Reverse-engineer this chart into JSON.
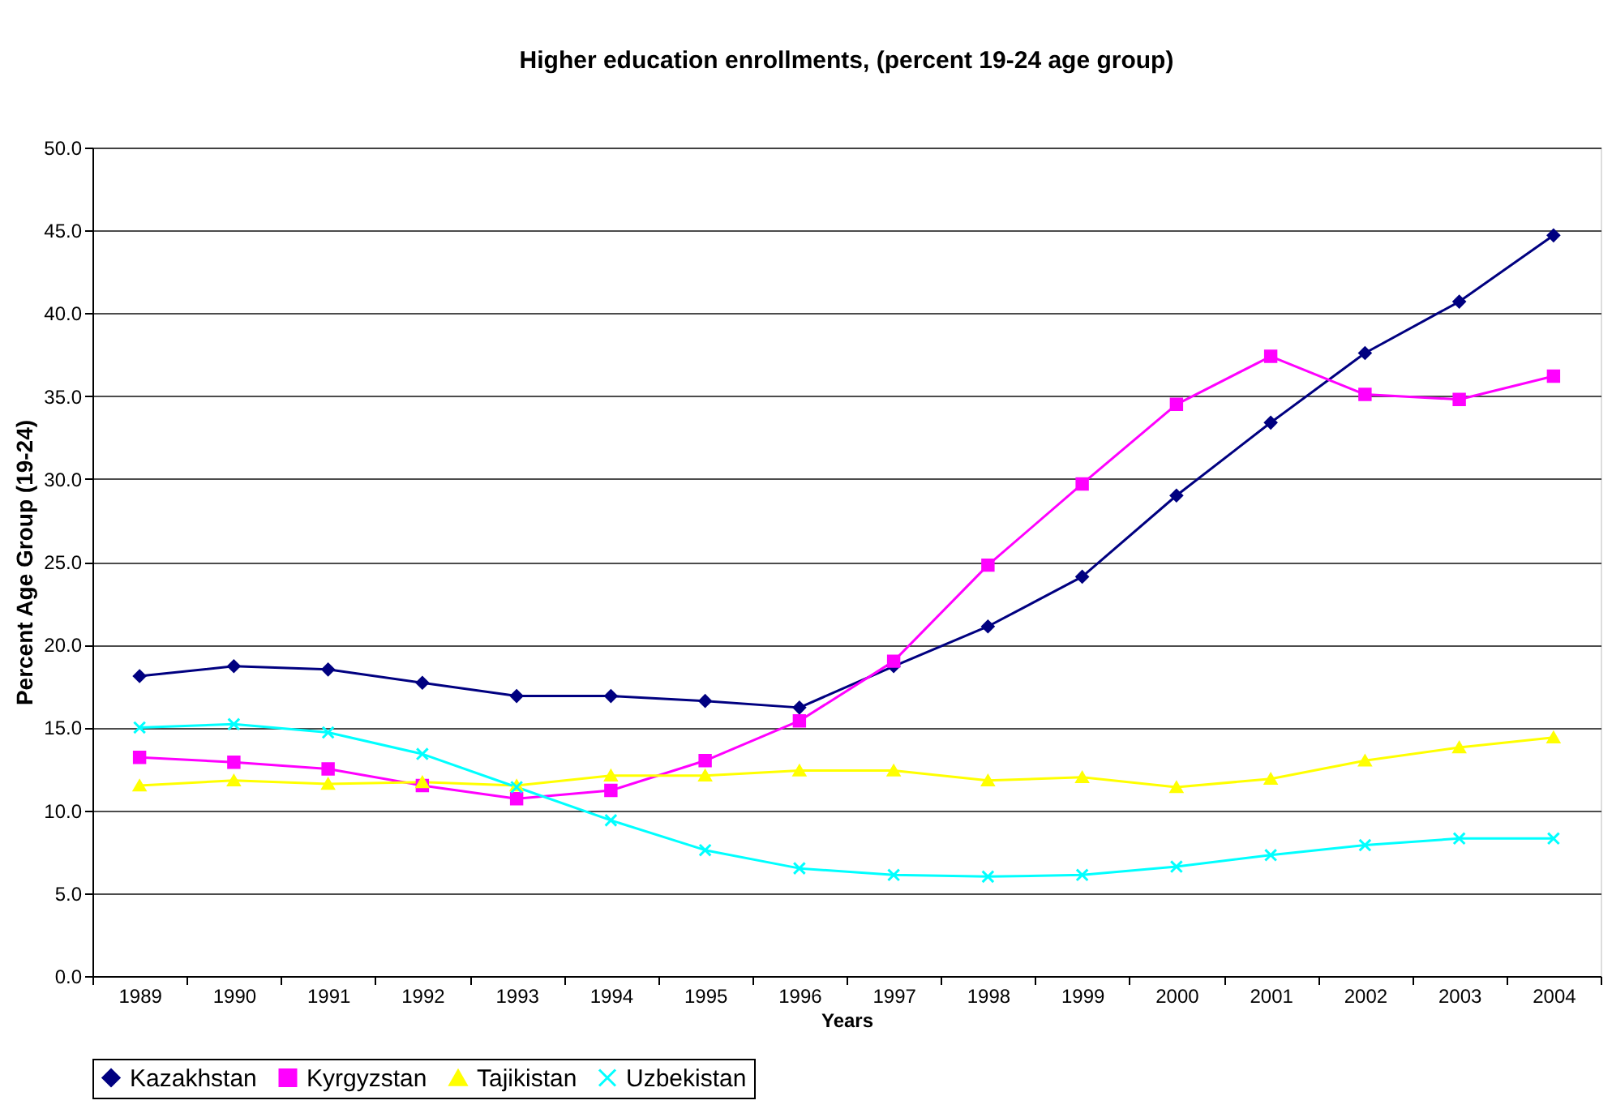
{
  "chart_data": {
    "type": "line",
    "title": "Higher education enrollments, (percent 19-24 age group)",
    "xlabel": "Years",
    "ylabel": "Percent Age Group (19-24)",
    "categories": [
      "1989",
      "1990",
      "1991",
      "1992",
      "1993",
      "1994",
      "1995",
      "1996",
      "1997",
      "1998",
      "1999",
      "2000",
      "2001",
      "2002",
      "2003",
      "2004"
    ],
    "series": [
      {
        "name": "Kazakhstan",
        "color": "#000080",
        "marker": "diamond",
        "values": [
          18.1,
          18.7,
          18.5,
          17.7,
          16.9,
          16.9,
          16.6,
          16.2,
          18.7,
          21.1,
          24.1,
          29.0,
          33.4,
          37.6,
          40.7,
          44.7
        ]
      },
      {
        "name": "Kyrgyzstan",
        "color": "#ff00ff",
        "marker": "square",
        "values": [
          13.2,
          12.9,
          12.5,
          11.5,
          10.7,
          11.2,
          13.0,
          15.4,
          19.0,
          24.8,
          29.7,
          34.5,
          37.4,
          35.1,
          34.8,
          36.2
        ]
      },
      {
        "name": "Tajikistan",
        "color": "#ffff00",
        "marker": "triangle",
        "values": [
          11.5,
          11.8,
          11.6,
          11.7,
          11.5,
          12.1,
          12.1,
          12.4,
          12.4,
          11.8,
          12.0,
          11.4,
          11.9,
          13.0,
          13.8,
          14.4
        ]
      },
      {
        "name": "Uzbekistan",
        "color": "#00ffff",
        "marker": "cross",
        "values": [
          15.0,
          15.2,
          14.7,
          13.4,
          11.4,
          9.4,
          7.6,
          6.5,
          6.1,
          6.0,
          6.1,
          6.6,
          7.3,
          7.9,
          8.3,
          8.3
        ]
      }
    ],
    "ylim": [
      0,
      50
    ],
    "yticks": [
      {
        "value": 0,
        "label": "0.0"
      },
      {
        "value": 5,
        "label": "5.0"
      },
      {
        "value": 10,
        "label": "10.0"
      },
      {
        "value": 15,
        "label": "15.0"
      },
      {
        "value": 20,
        "label": "20.0"
      },
      {
        "value": 25,
        "label": "25.0"
      },
      {
        "value": 30,
        "label": "30.0"
      },
      {
        "value": 35,
        "label": "35.0"
      },
      {
        "value": 40,
        "label": "40.0"
      },
      {
        "value": 45,
        "label": "45.0"
      },
      {
        "value": 50,
        "label": "50.0"
      }
    ],
    "grid": "y",
    "legend": "bottom",
    "line_style": "solid"
  }
}
